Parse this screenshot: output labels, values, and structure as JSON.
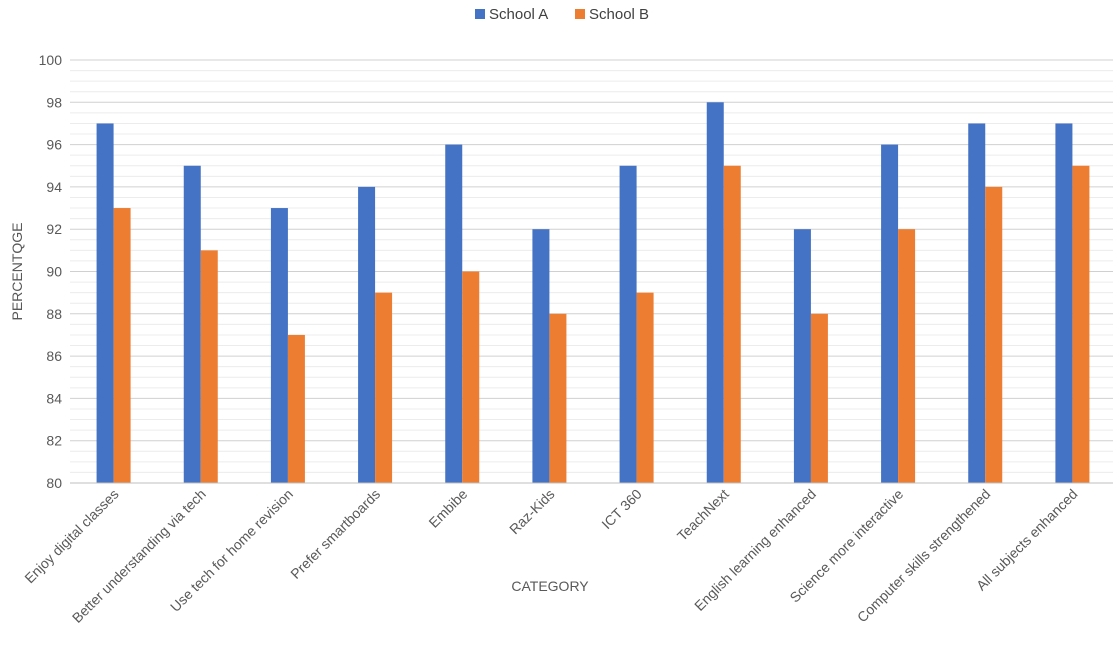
{
  "chart_data": {
    "type": "bar",
    "title": "",
    "xlabel": "CATEGORY",
    "ylabel": "PERCENTQGE",
    "ylim": [
      80,
      100
    ],
    "major_tick_step": 2,
    "minor_tick_step": 0.5,
    "grid": true,
    "legend_position": "top",
    "categories": [
      "Enjoy digital classes",
      "Better understanding via tech",
      "Use tech for home revision",
      "Prefer smartboards",
      "Embibe",
      "Raz-Kids",
      "ICT 360",
      "TeachNext",
      "English learning enhanced",
      "Science more interactive",
      "Computer skills strengthened",
      "All subjects enhanced"
    ],
    "series": [
      {
        "name": "School A",
        "color": "#4472C4",
        "values": [
          97,
          95,
          93,
          94,
          96,
          92,
          95,
          98,
          92,
          96,
          97,
          97
        ]
      },
      {
        "name": "School B",
        "color": "#ED7D31",
        "values": [
          93,
          91,
          87,
          89,
          90,
          88,
          89,
          95,
          88,
          92,
          94,
          95
        ]
      }
    ],
    "y_tick_labels": [
      "80",
      "82",
      "84",
      "86",
      "88",
      "90",
      "92",
      "94",
      "96",
      "98",
      "100"
    ]
  }
}
